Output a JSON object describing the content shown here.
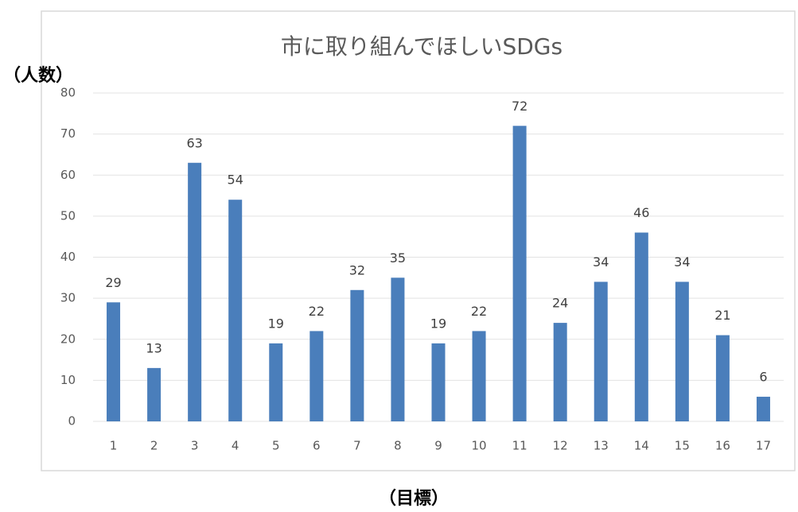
{
  "chart_data": {
    "type": "bar",
    "title": "市に取り組んでほしいSDGs",
    "y_label": "（人数）",
    "x_label": "（目標）",
    "categories": [
      "1",
      "2",
      "3",
      "4",
      "5",
      "6",
      "7",
      "8",
      "9",
      "10",
      "11",
      "12",
      "13",
      "14",
      "15",
      "16",
      "17"
    ],
    "values": [
      29,
      13,
      63,
      54,
      19,
      22,
      32,
      35,
      19,
      22,
      72,
      24,
      34,
      46,
      34,
      21,
      6
    ],
    "color": "#4a7ebb",
    "ylim": [
      0,
      80
    ],
    "yticks": [
      0,
      10,
      20,
      30,
      40,
      50,
      60,
      70,
      80
    ],
    "grid": true
  }
}
